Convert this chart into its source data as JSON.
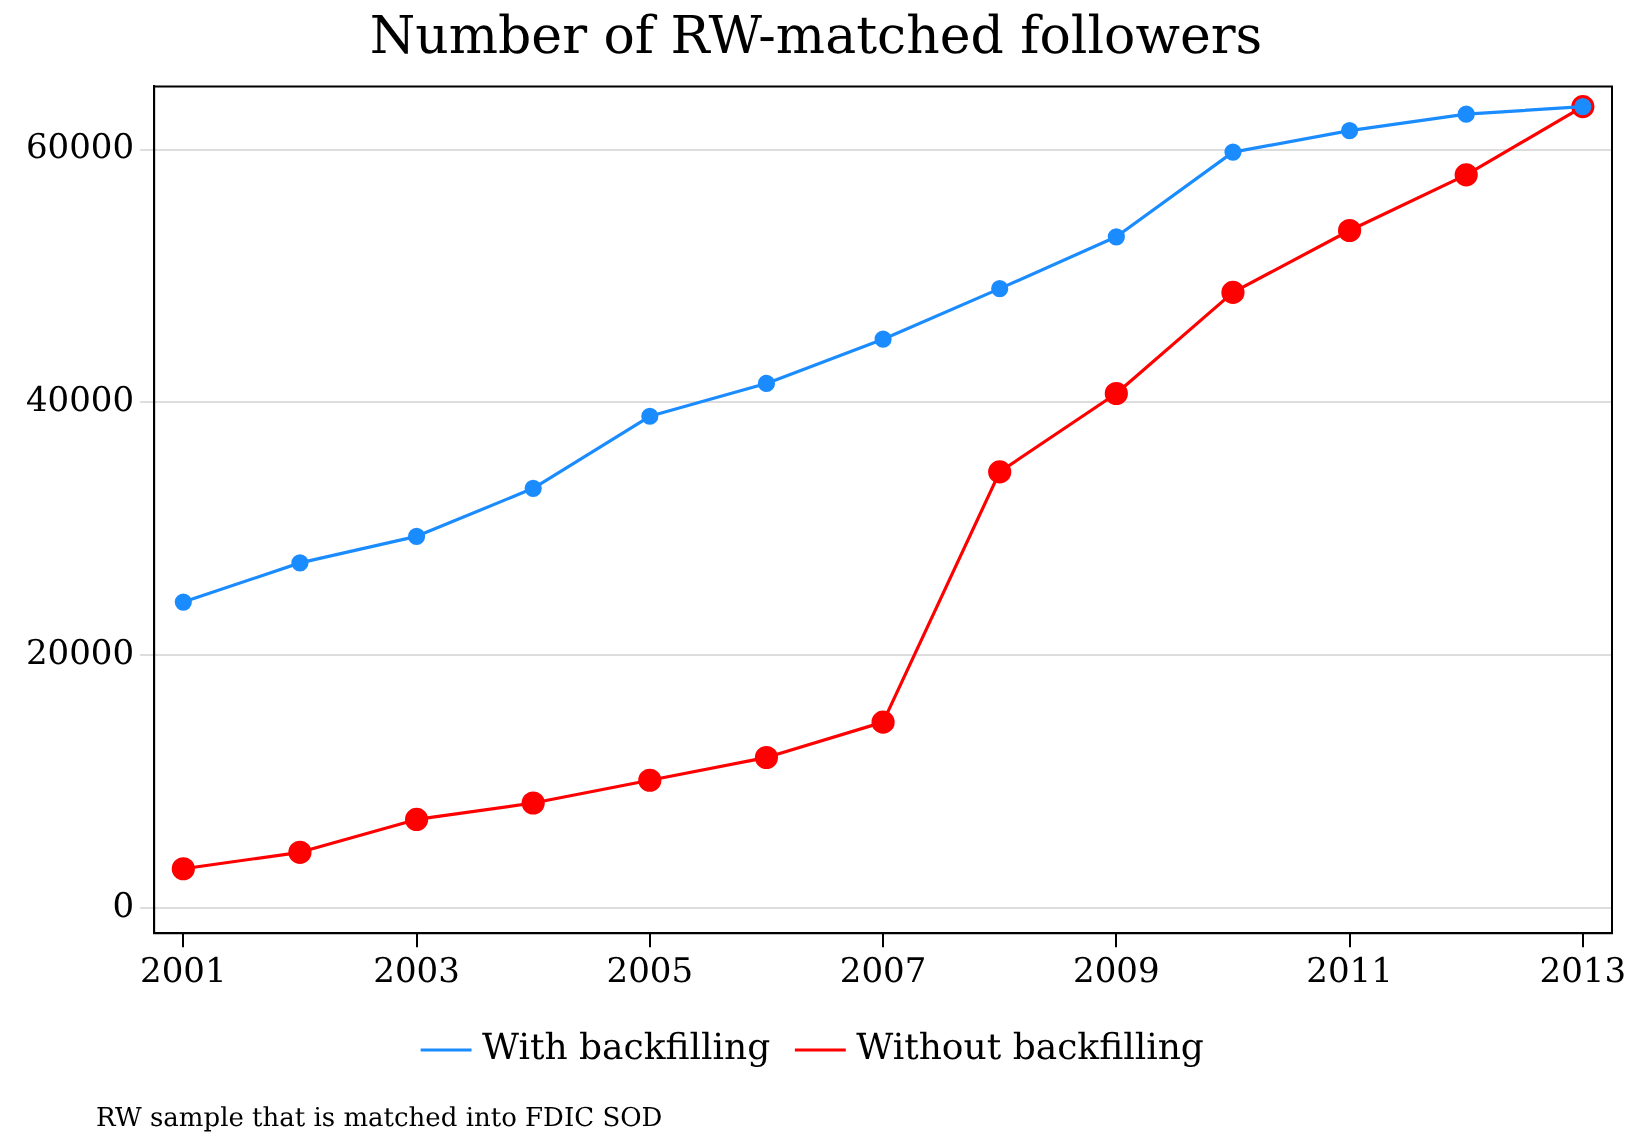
{
  "chart_data": {
    "type": "line",
    "title": "Number of RW-matched followers",
    "x": [
      2001,
      2002,
      2003,
      2004,
      2005,
      2006,
      2007,
      2008,
      2009,
      2010,
      2011,
      2012,
      2013
    ],
    "series": [
      {
        "name": "With backfilling",
        "color": "#1a8cff",
        "values": [
          24200,
          27300,
          29400,
          33200,
          38900,
          41500,
          45000,
          49000,
          53100,
          59800,
          61500,
          62800,
          63400
        ]
      },
      {
        "name": "Without backfilling",
        "color": "#ff0000",
        "values": [
          3100,
          4400,
          7000,
          8300,
          10100,
          11900,
          14700,
          34500,
          40700,
          48700,
          53600,
          58000,
          63400
        ]
      }
    ],
    "xlim": [
      2000.75,
      2013.25
    ],
    "xticks": [
      2001,
      2003,
      2005,
      2007,
      2009,
      2011,
      2013
    ],
    "ylim": [
      -2000,
      65000
    ],
    "yticks": [
      0,
      20000,
      40000,
      60000
    ],
    "grid": "y",
    "legend": "bottom",
    "marker": "circle",
    "line_style": "solid",
    "annotations": [
      "RW sample that is matched into FDIC SOD"
    ]
  }
}
